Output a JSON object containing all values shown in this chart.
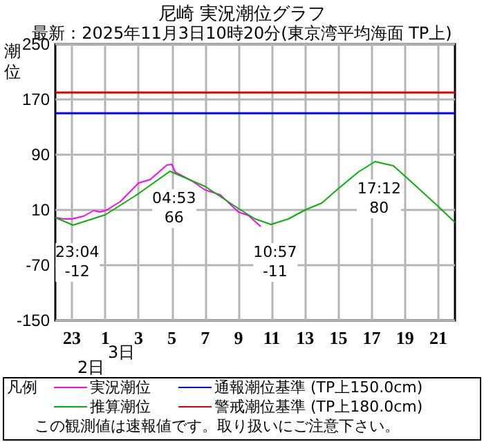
{
  "chart_data": {
    "type": "line",
    "title": "尼崎 実況潮位グラフ",
    "subtitle": "最新：2025年11月3日10時20分(東京湾平均海面 TP上)",
    "ylabel": "潮位",
    "legend_title": "凡例",
    "x": [
      "2025-11-02T22:00",
      "2025-11-02T22:30",
      "2025-11-02T23:00",
      "2025-11-02T23:42",
      "2025-11-03T00:18",
      "2025-11-03T00:42",
      "2025-11-03T01:06",
      "2025-11-03T01:54",
      "2025-11-03T03:00",
      "2025-11-03T03:42",
      "2025-11-03T04:42",
      "2025-11-03T05:00",
      "2025-11-03T05:12",
      "2025-11-03T06:12",
      "2025-11-03T07:00",
      "2025-11-03T07:54",
      "2025-11-03T09:00",
      "2025-11-03T09:36",
      "2025-11-03T10:20"
    ],
    "series": [
      {
        "name": "実況潮位",
        "color": "#ff00ff",
        "values": [
          -1,
          -3,
          -3,
          1,
          9,
          7,
          10,
          22,
          49,
          54,
          75,
          76,
          65,
          52,
          39,
          32,
          7,
          2,
          -14
        ]
      },
      {
        "name": "推算潮位",
        "color": "#00b400",
        "x": [
          "2025-11-02T22:00",
          "2025-11-02T23:04",
          "2025-11-03T01:00",
          "2025-11-03T02:54",
          "2025-11-03T04:53",
          "2025-11-03T07:00",
          "2025-11-03T09:00",
          "2025-11-03T10:00",
          "2025-11-03T10:57",
          "2025-11-03T12:00",
          "2025-11-03T13:00",
          "2025-11-03T14:00",
          "2025-11-03T15:00",
          "2025-11-03T16:12",
          "2025-11-03T17:12",
          "2025-11-03T18:18",
          "2025-11-03T19:00",
          "2025-11-03T21:00",
          "2025-11-03T22:00"
        ],
        "values": [
          -1,
          -12,
          3,
          32,
          66,
          44,
          12,
          -3,
          -11,
          -3,
          10,
          20,
          41,
          65,
          80,
          74,
          59,
          15,
          -8
        ]
      }
    ],
    "xlim": [
      "2025-11-02T22:00",
      "2025-11-03T22:00"
    ],
    "xticks": [
      {
        "value": "2025-11-02T23:00",
        "label": "23"
      },
      {
        "value": "2025-11-03T01:00",
        "label": "1"
      },
      {
        "value": "2025-11-03T03:00",
        "label": "3"
      },
      {
        "value": "2025-11-03T05:00",
        "label": "5"
      },
      {
        "value": "2025-11-03T07:00",
        "label": "7"
      },
      {
        "value": "2025-11-03T09:00",
        "label": "9"
      },
      {
        "value": "2025-11-03T11:00",
        "label": "11"
      },
      {
        "value": "2025-11-03T13:00",
        "label": "13"
      },
      {
        "value": "2025-11-03T15:00",
        "label": "15"
      },
      {
        "value": "2025-11-03T17:00",
        "label": "17"
      },
      {
        "value": "2025-11-03T19:00",
        "label": "19"
      },
      {
        "value": "2025-11-03T21:00",
        "label": "21"
      }
    ],
    "ylim": [
      -150,
      250
    ],
    "yticks": [
      -150,
      -70,
      10,
      90,
      170,
      250
    ],
    "ref_lines": [
      {
        "axis": "y",
        "value": 150,
        "label": "通報潮位基準 (TP上150.0cm)",
        "color": "#0000ff"
      },
      {
        "axis": "y",
        "value": 180,
        "label": "警戒潮位基準 (TP上180.0cm)",
        "color": "#e00000"
      }
    ],
    "annotations": [
      {
        "text": "23:04\n-12",
        "x": "2025-11-02T23:04",
        "y": -12
      },
      {
        "text": "04:53\n66",
        "x": "2025-11-03T04:53",
        "y": 66
      },
      {
        "text": "10:57\n-11",
        "x": "2025-11-03T10:57",
        "y": -11
      },
      {
        "text": "17:12\n80",
        "x": "2025-11-03T17:12",
        "y": 80
      },
      "3日",
      "2日",
      "この観測値は速報値です。取り扱いにご注意下さい。"
    ],
    "grid": true,
    "legend": "bottom",
    "marker": "none"
  }
}
